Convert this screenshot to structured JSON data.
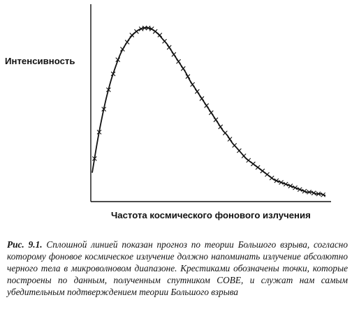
{
  "chart_data": {
    "type": "line",
    "ylabel": "Интенсивность",
    "xlabel": "Частота космического фонового излучения",
    "xlim": [
      0,
      100
    ],
    "ylim": [
      0,
      100
    ],
    "grid": false,
    "series": [
      {
        "style": "solid-line",
        "x": [
          0,
          2,
          4,
          6,
          8,
          10,
          12,
          14,
          16,
          18,
          20,
          22,
          24,
          26,
          28,
          30,
          32,
          34,
          36,
          38,
          40,
          42,
          44,
          46,
          48,
          50,
          52,
          54,
          56,
          58,
          60,
          62,
          64,
          66,
          68,
          70,
          72,
          74,
          76,
          78,
          80,
          82,
          84,
          86,
          88,
          90,
          92,
          94,
          96,
          98,
          100
        ],
        "y": [
          14,
          30,
          44,
          56,
          66,
          74,
          81,
          86,
          90,
          93,
          95,
          96,
          96,
          95,
          93,
          90,
          87,
          83,
          79,
          75,
          71,
          66,
          62,
          58,
          54,
          50,
          46,
          42,
          38,
          35,
          31,
          28,
          25,
          22,
          20,
          18,
          16,
          14,
          12,
          10,
          9,
          8,
          7,
          6,
          5,
          4,
          3,
          3,
          2,
          2,
          1
        ]
      },
      {
        "style": "crosses",
        "x": [
          1,
          3,
          5,
          7,
          9,
          11,
          13,
          15,
          17,
          19,
          21,
          22.5,
          24,
          25.5,
          27,
          29,
          31,
          33,
          35,
          37,
          39,
          41,
          43,
          45,
          47,
          49,
          51,
          53,
          55,
          57,
          59,
          61,
          63,
          65,
          67,
          69,
          71,
          73,
          75,
          77,
          79,
          81,
          83,
          85,
          87,
          89,
          91,
          93,
          95,
          97,
          99
        ],
        "y": [
          22,
          37,
          50,
          61,
          70,
          78,
          84,
          88,
          92,
          94,
          95.5,
          96,
          96,
          95.5,
          94,
          92,
          88.5,
          85,
          81,
          77,
          73,
          68.5,
          64,
          60,
          56,
          52,
          48,
          44,
          40,
          36.5,
          33,
          29.5,
          26.5,
          23.5,
          21,
          19,
          17,
          15,
          13,
          11,
          9.5,
          8.5,
          7.5,
          6.5,
          5.5,
          4.5,
          3.5,
          3,
          2.5,
          2,
          1.5
        ]
      }
    ]
  },
  "caption": {
    "label": "Рис. 9.1.",
    "text": " Сплошной линией показан прогноз по теории Большого взрыва, согласно которому фоновое космическое излучение должно напоминать излучение абсолютно черного тела в микроволновом диапазоне. Крестиками обозначены точки, которые построены по данным, полученным спутником COBE, и служат нам самым убедительным подтверждением теории Большого взрыва"
  }
}
